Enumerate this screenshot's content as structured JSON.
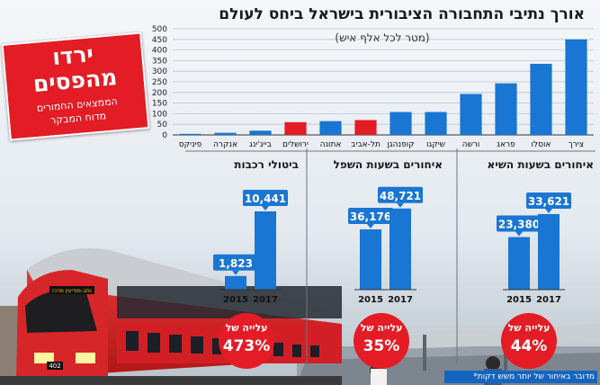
{
  "title": "אורך נתיבי התחבורה הציבורית בישראל ביחס לעולם",
  "subtitle": "(מטר לכל אלף איש)",
  "badge": {
    "headline_1": "ירדו",
    "headline_2": "מהפסים",
    "sub_1": "הממצאים החמורים",
    "sub_2": "מדוח המבקר"
  },
  "footnote": "*מדובר באיחור של יותר משש דקות",
  "train_number": "402",
  "colors": {
    "bar_blue": "#1976d2",
    "bar_red": "#e31c25",
    "label_blue": "#1976d2"
  },
  "chart_data": [
    {
      "type": "bar",
      "title": "אורך נתיבי התחבורה הציבורית בישראל ביחס לעולם",
      "subtitle": "(מטר לכל אלף איש)",
      "categories": [
        "צירך",
        "אוסלו",
        "פראג",
        "ורשה",
        "שיקגו",
        "קופנהגן",
        "תל-אביב",
        "אתונה",
        "ירושלים",
        "בייג'ינג",
        "אנקרה",
        "פיניקס"
      ],
      "values": [
        450,
        335,
        243,
        193,
        108,
        108,
        70,
        65,
        60,
        20,
        10,
        5
      ],
      "highlight": [
        "תל-אביב",
        "ירושלים"
      ],
      "yticks": [
        0,
        50,
        100,
        150,
        200,
        250,
        300,
        350,
        400,
        450,
        500
      ],
      "ylim": [
        0,
        500
      ],
      "grid": true
    },
    {
      "type": "bar",
      "title": "איחורים בשעות השיא",
      "categories": [
        "2015",
        "2017"
      ],
      "values": [
        23380,
        33621
      ],
      "value_labels": [
        "23,380",
        "33,621"
      ],
      "change_label_1": "עלייה של",
      "change_label_2": "44%"
    },
    {
      "type": "bar",
      "title": "איחורים בשעות השפל",
      "categories": [
        "2015",
        "2017"
      ],
      "values": [
        36176,
        48721
      ],
      "value_labels": [
        "36,176",
        "48,721"
      ],
      "change_label_1": "עלייה של",
      "change_label_2": "35%"
    },
    {
      "type": "bar",
      "title": "ביטולי רכבות",
      "categories": [
        "2015",
        "2017"
      ],
      "values": [
        1823,
        10441
      ],
      "value_labels": [
        "1,823",
        "10,441"
      ],
      "change_label_1": "עלייה של",
      "change_label_2": "473%"
    }
  ]
}
